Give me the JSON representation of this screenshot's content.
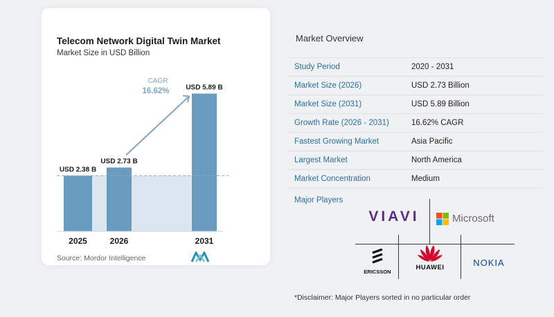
{
  "chart_data": {
    "type": "bar",
    "title": "Telecom Network Digital Twin Market",
    "subtitle": "Market Size in USD Billion",
    "categories": [
      "2025",
      "2026",
      "2031"
    ],
    "values": [
      2.38,
      2.73,
      5.89
    ],
    "data_labels": [
      "USD 2.38 B",
      "USD 2.73 B",
      "USD 5.89 B"
    ],
    "cagr_label": "CAGR",
    "cagr_value": "16.62%",
    "ylim": [
      0,
      6.2
    ],
    "bar_color": "#6a9cbf",
    "area_color": "#dce6f0",
    "arrow_color": "#7ea6c4"
  },
  "source": "Source:  Mordor Intelligence",
  "overview": {
    "title": "Market Overview",
    "rows": [
      {
        "label": "Study Period",
        "value": "2020 - 2031"
      },
      {
        "label": "Market Size (2026)",
        "value": "USD 2.73 Billion"
      },
      {
        "label": "Market Size (2031)",
        "value": "USD 5.89 Billion"
      },
      {
        "label": "Growth Rate (2026 - 2031)",
        "value": "16.62% CAGR"
      },
      {
        "label": "Fastest Growing Market",
        "value": "Asia Pacific"
      },
      {
        "label": "Largest Market",
        "value": "North America"
      },
      {
        "label": "Market Concentration",
        "value": "Medium"
      }
    ],
    "players_title": "Major Players",
    "players": [
      "VIAVI",
      "Microsoft",
      "ERICSSON",
      "HUAWEI",
      "NOKIA"
    ],
    "disclaimer": "*Disclaimer: Major Players sorted in no particular order"
  },
  "colors": {
    "label_blue": "#2b6f9e",
    "brand_teal": "#2f8fb0",
    "viavi_purple": "#5a2d82",
    "huawei_red": "#cf0a2c",
    "nokia_blue": "#124191"
  }
}
